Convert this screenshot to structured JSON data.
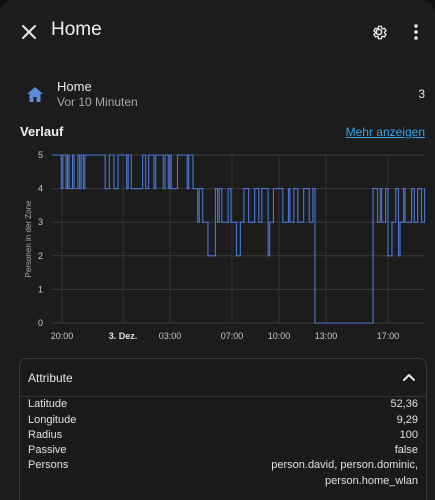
{
  "dialog": {
    "title": "Home",
    "close_icon": "close-icon",
    "settings_icon": "gear-icon",
    "menu_icon": "more-vert-icon"
  },
  "entity": {
    "icon": "home-icon",
    "name": "Home",
    "last_changed": "Vor 10 Minuten",
    "state": "3"
  },
  "history": {
    "title": "Verlauf",
    "more_link": "Mehr anzeigen"
  },
  "chart_data": {
    "type": "line",
    "ylabel": "Personen in der Zone",
    "ylim": [
      0,
      5
    ],
    "yticks": [
      "0",
      "1",
      "2",
      "3",
      "4",
      "5"
    ],
    "xticks": [
      {
        "label": "20:00",
        "bold": false
      },
      {
        "label": "3. Dez.",
        "bold": true
      },
      {
        "label": "03:00",
        "bold": false
      },
      {
        "label": "07:00",
        "bold": false
      },
      {
        "label": "10:00",
        "bold": false
      },
      {
        "label": "13:00",
        "bold": false
      },
      {
        "label": "17:00",
        "bold": false
      }
    ],
    "grid": true,
    "color": "#4a76d8",
    "series": [
      {
        "segment": "2 Dez 19:30 – 3 Dez 04:30",
        "base": 4,
        "flicker": 5,
        "level_range": [
          4,
          5
        ]
      },
      {
        "segment": "3 Dez 04:30 – 10:30",
        "base": 3,
        "flicker": 4,
        "dips": 2,
        "level_range": [
          2,
          4
        ]
      },
      {
        "segment": "3 Dez 10:30 – 12:30",
        "base": 3,
        "flicker": 4,
        "dips": 2,
        "level_range": [
          2,
          4
        ]
      },
      {
        "segment": "3 Dez 12:30 – 15:30",
        "base": 0,
        "level_range": [
          0,
          0
        ]
      },
      {
        "segment": "3 Dez 15:30 – 19:30",
        "base": 4,
        "flicker": 3,
        "dips": 2,
        "level_range": [
          2,
          4
        ]
      }
    ]
  },
  "attributes": {
    "title": "Attribute",
    "chevron_icon": "chevron-up-icon",
    "rows": [
      {
        "key": "Latitude",
        "value": "52,36"
      },
      {
        "key": "Longitude",
        "value": "9,29"
      },
      {
        "key": "Radius",
        "value": "100"
      },
      {
        "key": "Passive",
        "value": "false"
      },
      {
        "key": "Persons",
        "value": "person.david, person.dominic,",
        "value2": "person.home_wlan"
      }
    ]
  }
}
